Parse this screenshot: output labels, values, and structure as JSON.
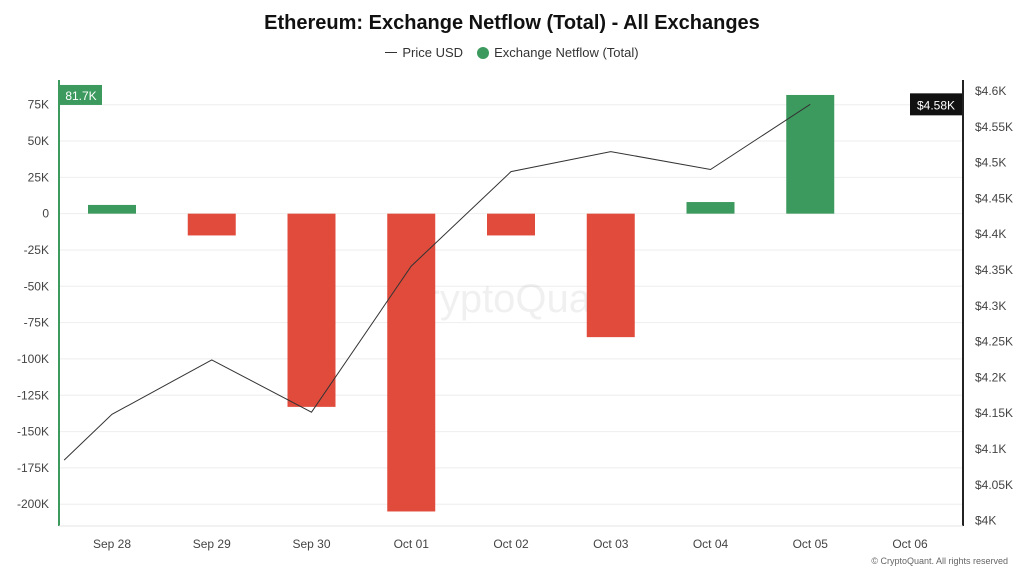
{
  "chart_data": {
    "type": "bar",
    "title": "Ethereum: Exchange Netflow (Total) - All Exchanges",
    "categories": [
      "Sep 28",
      "Sep 29",
      "Sep 30",
      "Oct 01",
      "Oct 02",
      "Oct 03",
      "Oct 04",
      "Oct 05",
      "Oct 06"
    ],
    "series": [
      {
        "name": "Exchange Netflow (Total)",
        "type": "bar",
        "axis": "left",
        "values": [
          6000,
          -15000,
          -133000,
          -205000,
          -15000,
          -85000,
          8000,
          81700,
          null
        ]
      },
      {
        "name": "Price USD",
        "type": "line",
        "axis": "right",
        "x": [
          -0.48,
          0,
          1,
          2,
          3,
          4,
          5,
          6,
          7
        ],
        "values": [
          4083,
          4147,
          4223,
          4150,
          4354,
          4486,
          4514,
          4489,
          4580
        ]
      }
    ],
    "left_axis": {
      "ylim": [
        -215000,
        92000
      ],
      "ticks": [
        75000,
        50000,
        25000,
        0,
        -25000,
        -50000,
        -75000,
        -100000,
        -125000,
        -150000,
        -175000,
        -200000
      ],
      "tick_labels": [
        "75K",
        "50K",
        "25K",
        "0",
        "-25K",
        "-50K",
        "-75K",
        "-100K",
        "-125K",
        "-150K",
        "-175K",
        "-200K"
      ],
      "current_label": "81.7K"
    },
    "right_axis": {
      "ylim": [
        3991,
        4614
      ],
      "ticks": [
        4600,
        4550,
        4500,
        4450,
        4400,
        4350,
        4300,
        4250,
        4200,
        4150,
        4100,
        4050,
        4000
      ],
      "tick_labels": [
        "$4.6K",
        "$4.55K",
        "$4.5K",
        "$4.45K",
        "$4.4K",
        "$4.35K",
        "$4.3K",
        "$4.25K",
        "$4.2K",
        "$4.15K",
        "$4.1K",
        "$4.05K",
        "$4K"
      ],
      "current_label": "$4.58K"
    },
    "legend": [
      "Price USD",
      "Exchange Netflow (Total)"
    ],
    "legend_position": "top-center",
    "grid": true,
    "colors": {
      "positive": "#3d9a5f",
      "negative": "#e04b3c",
      "line": "#333333",
      "price_badge": "#111111"
    },
    "watermark": "CryptoQuant",
    "copyright": "© CryptoQuant. All rights reserved"
  }
}
